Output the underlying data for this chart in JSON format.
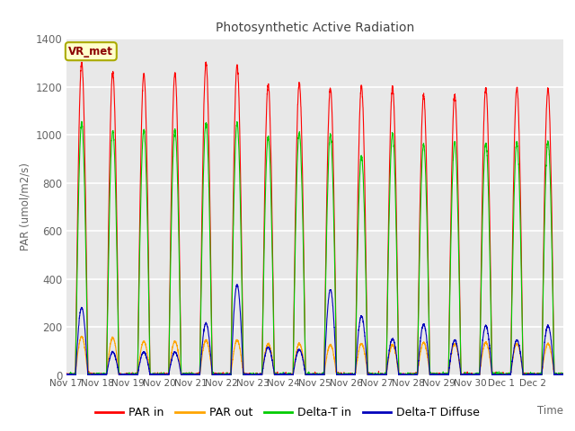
{
  "title": "Photosynthetic Active Radiation",
  "ylabel": "PAR (umol/m2/s)",
  "xlabel": "Time",
  "annotation": "VR_met",
  "ylim": [
    0,
    1400
  ],
  "fig_bg_color": "#ffffff",
  "plot_bg_color": "#e8e8e8",
  "line_colors": {
    "par_in": "#ff0000",
    "par_out": "#ffa500",
    "delta_t_in": "#00cc00",
    "delta_t_diffuse": "#0000bb"
  },
  "legend_labels": [
    "PAR in",
    "PAR out",
    "Delta-T in",
    "Delta-T Diffuse"
  ],
  "xtick_labels": [
    "Nov 17",
    "Nov 18",
    "Nov 19",
    "Nov 20",
    "Nov 21",
    "Nov 22",
    "Nov 23",
    "Nov 24",
    "Nov 25",
    "Nov 26",
    "Nov 27",
    "Nov 28",
    "Nov 29",
    "Nov 30",
    "Dec 1",
    "Dec 2"
  ],
  "ytick_values": [
    0,
    200,
    400,
    600,
    800,
    1000,
    1200,
    1400
  ],
  "num_days": 16,
  "points_per_day": 288,
  "peaks": {
    "par_in": [
      1300,
      1260,
      1255,
      1255,
      1300,
      1290,
      1210,
      1215,
      1195,
      1200,
      1200,
      1165,
      1165,
      1195,
      1195,
      1190
    ],
    "par_out": [
      160,
      155,
      140,
      140,
      145,
      145,
      130,
      130,
      125,
      130,
      125,
      135,
      130,
      135,
      130,
      130
    ],
    "delta_t_in": [
      1050,
      1015,
      1020,
      1020,
      1050,
      1050,
      990,
      1010,
      1000,
      910,
      1005,
      960,
      970,
      965,
      970,
      970
    ],
    "delta_t_diffuse": [
      280,
      95,
      95,
      95,
      215,
      375,
      115,
      105,
      355,
      245,
      150,
      210,
      145,
      205,
      145,
      205
    ]
  },
  "day_start": 0.3,
  "day_end": 0.7
}
